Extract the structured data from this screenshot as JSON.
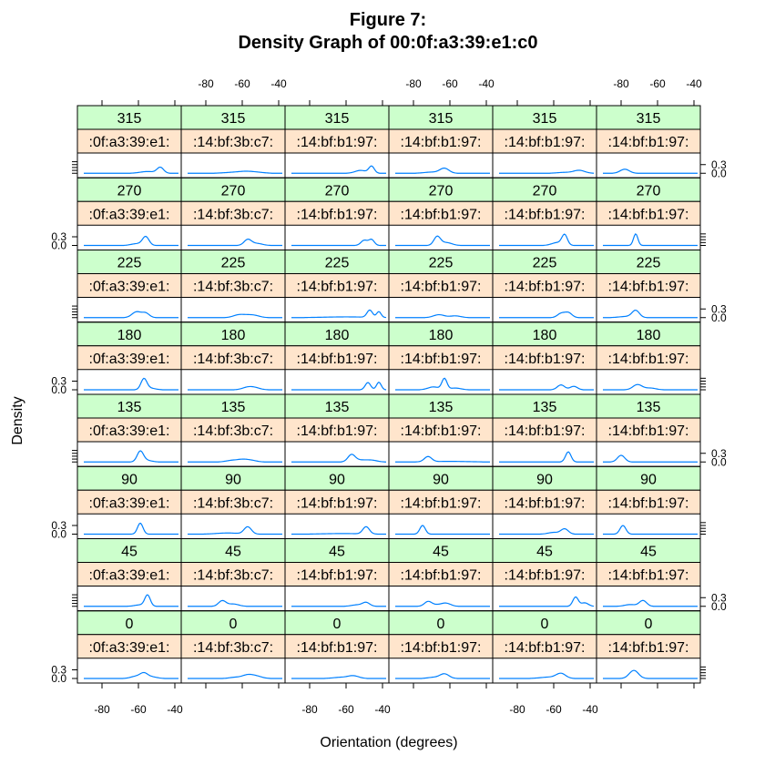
{
  "title_line1": "Figure 7:",
  "title_line2": "Density Graph of 00:0f:a3:39:e1:c0",
  "colors": {
    "strip_top": "#ccffcc",
    "strip_bottom": "#ffe5cc",
    "line": "#0080ff"
  },
  "chart_data": {
    "type": "line",
    "title": "Figure 7:\nDensity Graph of 00:0f:a3:39:e1:c0",
    "xlabel": "Orientation (degrees)",
    "ylabel": "Density",
    "layout": {
      "columns": 6,
      "rows": 8
    },
    "x_ticks": [
      -80,
      -60,
      -40
    ],
    "y_ticks": [
      0.0,
      0.3
    ],
    "y_tick_labels": [
      "0.0",
      "0.3"
    ],
    "xlim": [
      -90,
      -38
    ],
    "ylim": [
      0,
      0.45
    ],
    "column_labels": [
      ":0f:a3:39:e1:",
      ":14:bf:3b:c7:",
      ":14:bf:b1:97:",
      ":14:bf:b1:97:",
      ":14:bf:b1:97:",
      ":14:bf:b1:97:"
    ],
    "row_labels": [
      "315",
      "270",
      "225",
      "180",
      "135",
      "90",
      "45",
      "0"
    ],
    "peaks": [
      [
        [
          [
            -48,
            0.2,
            1.8
          ],
          [
            -55,
            0.06,
            4
          ]
        ],
        [
          [
            -58,
            0.05,
            4
          ],
          [
            -65,
            0.03,
            5
          ],
          [
            -52,
            0.03,
            4
          ]
        ],
        [
          [
            -46,
            0.24,
            1.5
          ],
          [
            -52,
            0.1,
            3
          ]
        ],
        [
          [
            -63,
            0.17,
            2.5
          ],
          [
            -70,
            0.04,
            4
          ]
        ],
        [
          [
            -46,
            0.1,
            3
          ],
          [
            -54,
            0.03,
            4
          ]
        ],
        [
          [
            -78,
            0.14,
            2.5
          ]
        ]
      ],
      [
        [
          [
            -56,
            0.3,
            1.8
          ],
          [
            -61,
            0.06,
            3
          ]
        ],
        [
          [
            -57,
            0.2,
            2
          ],
          [
            -52,
            0.07,
            3
          ]
        ],
        [
          [
            -50,
            0.18,
            1.8
          ],
          [
            -46,
            0.2,
            1.5
          ]
        ],
        [
          [
            -67,
            0.3,
            1.8
          ],
          [
            -62,
            0.1,
            3
          ]
        ],
        [
          [
            -54,
            0.35,
            1.5
          ],
          [
            -58,
            0.1,
            3
          ]
        ],
        [
          [
            -72,
            0.4,
            1.2
          ]
        ]
      ],
      [
        [
          [
            -61,
            0.2,
            2.5
          ],
          [
            -56,
            0.15,
            2
          ]
        ],
        [
          [
            -62,
            0.09,
            3
          ],
          [
            -53,
            0.06,
            3
          ],
          [
            -57,
            0.06,
            3
          ]
        ],
        [
          [
            -47,
            0.25,
            1.5
          ],
          [
            -42,
            0.2,
            1.2
          ],
          [
            -60,
            0.025,
            12
          ]
        ],
        [
          [
            -66,
            0.1,
            3
          ],
          [
            -57,
            0.06,
            3
          ]
        ],
        [
          [
            -52,
            0.17,
            2
          ],
          [
            -56,
            0.14,
            2
          ]
        ],
        [
          [
            -72,
            0.24,
            2
          ],
          [
            -77,
            0.04,
            4
          ]
        ]
      ],
      [
        [
          [
            -57,
            0.36,
            1.6
          ],
          [
            -54,
            0.06,
            3
          ]
        ],
        [
          [
            -57,
            0.08,
            3
          ],
          [
            -53,
            0.06,
            3
          ]
        ],
        [
          [
            -48,
            0.25,
            1.5
          ],
          [
            -42,
            0.26,
            1.3
          ]
        ],
        [
          [
            -63,
            0.38,
            1.4
          ],
          [
            -69,
            0.1,
            3
          ],
          [
            -57,
            0.06,
            3
          ]
        ],
        [
          [
            -56,
            0.17,
            2
          ],
          [
            -49,
            0.12,
            2
          ]
        ],
        [
          [
            -71,
            0.18,
            2.5
          ],
          [
            -64,
            0.06,
            3
          ]
        ]
      ],
      [
        [
          [
            -59,
            0.35,
            1.7
          ],
          [
            -56,
            0.06,
            3
          ]
        ],
        [
          [
            -60,
            0.08,
            3
          ],
          [
            -66,
            0.05,
            3
          ],
          [
            -55,
            0.05,
            3
          ]
        ],
        [
          [
            -57,
            0.25,
            2
          ],
          [
            -52,
            0.06,
            3
          ],
          [
            -46,
            0.06,
            3
          ]
        ],
        [
          [
            -72,
            0.18,
            2
          ],
          [
            -60,
            0.02,
            10
          ]
        ],
        [
          [
            -52,
            0.35,
            1.5
          ]
        ],
        [
          [
            -80,
            0.23,
            2
          ]
        ]
      ],
      [
        [
          [
            -59,
            0.38,
            1.5
          ]
        ],
        [
          [
            -57,
            0.25,
            2
          ],
          [
            -68,
            0.04,
            6
          ]
        ],
        [
          [
            -49,
            0.25,
            1.8
          ],
          [
            -62,
            0.02,
            10
          ]
        ],
        [
          [
            -75,
            0.3,
            1.5
          ]
        ],
        [
          [
            -54,
            0.18,
            2
          ],
          [
            -60,
            0.06,
            3
          ]
        ],
        [
          [
            -79,
            0.3,
            1.6
          ]
        ]
      ],
      [
        [
          [
            -55,
            0.38,
            1.5
          ],
          [
            -59,
            0.05,
            3
          ]
        ],
        [
          [
            -71,
            0.19,
            2
          ],
          [
            -65,
            0.08,
            3
          ]
        ],
        [
          [
            -49,
            0.13,
            2
          ],
          [
            -54,
            0.05,
            3
          ]
        ],
        [
          [
            -72,
            0.16,
            2
          ],
          [
            -62,
            0.1,
            2.5
          ],
          [
            -67,
            0.05,
            3
          ]
        ],
        [
          [
            -48,
            0.32,
            1.5
          ],
          [
            -43,
            0.12,
            2
          ]
        ],
        [
          [
            -68,
            0.2,
            2
          ],
          [
            -75,
            0.06,
            3
          ]
        ]
      ],
      [
        [
          [
            -57,
            0.15,
            2
          ],
          [
            -61,
            0.08,
            3
          ],
          [
            -53,
            0.06,
            3
          ]
        ],
        [
          [
            -57,
            0.12,
            3
          ],
          [
            -52,
            0.07,
            3
          ],
          [
            -64,
            0.04,
            3
          ]
        ],
        [
          [
            -56,
            0.09,
            3
          ],
          [
            -63,
            0.04,
            4
          ]
        ],
        [
          [
            -63,
            0.16,
            2.5
          ],
          [
            -69,
            0.04,
            3
          ]
        ],
        [
          [
            -56,
            0.16,
            2.5
          ],
          [
            -62,
            0.05,
            5
          ]
        ],
        [
          [
            -73,
            0.28,
            2.5
          ]
        ]
      ]
    ]
  }
}
